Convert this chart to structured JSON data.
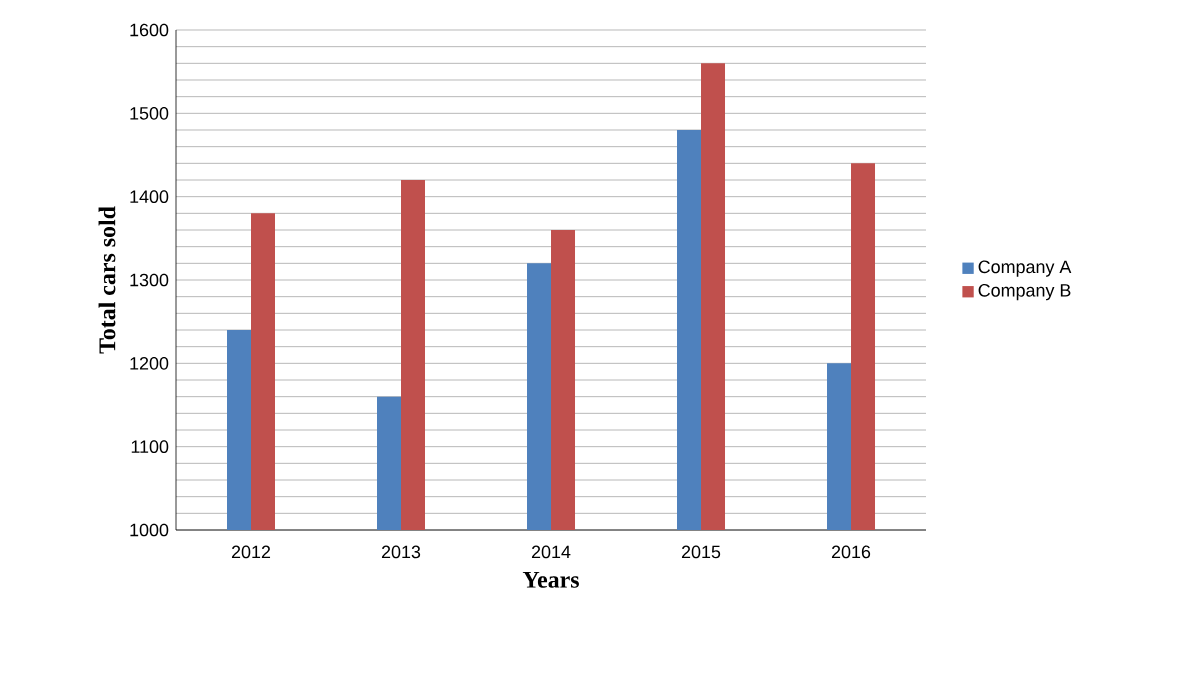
{
  "chart_data": {
    "type": "bar",
    "xlabel": "Years",
    "ylabel": "Total cars sold",
    "categories": [
      "2012",
      "2013",
      "2014",
      "2015",
      "2016"
    ],
    "series": [
      {
        "name": "Company A",
        "color": "#4f81bd",
        "values": [
          1240,
          1160,
          1320,
          1480,
          1200
        ]
      },
      {
        "name": "Company B",
        "color": "#c0504d",
        "values": [
          1380,
          1420,
          1360,
          1560,
          1440
        ]
      }
    ],
    "ylim": [
      1000,
      1600
    ],
    "yticks": [
      1000,
      {
        "value": 1020,
        "label": null
      },
      {
        "value": 1040,
        "label": null
      },
      {
        "value": 1060,
        "label": null
      },
      {
        "value": 1080,
        "label": null
      },
      1100,
      {
        "value": 1120,
        "label": null
      },
      {
        "value": 1140,
        "label": null
      },
      {
        "value": 1160,
        "label": null
      },
      {
        "value": 1180,
        "label": null
      },
      1200,
      {
        "value": 1220,
        "label": null
      },
      {
        "value": 1240,
        "label": null
      },
      {
        "value": 1260,
        "label": null
      },
      {
        "value": 1280,
        "label": null
      },
      1300,
      {
        "value": 1320,
        "label": null
      },
      {
        "value": 1340,
        "label": null
      },
      {
        "value": 1360,
        "label": null
      },
      {
        "value": 1380,
        "label": null
      },
      1400,
      {
        "value": 1420,
        "label": null
      },
      {
        "value": 1440,
        "label": null
      },
      {
        "value": 1460,
        "label": null
      },
      {
        "value": 1480,
        "label": null
      },
      1500,
      {
        "value": 1520,
        "label": null
      },
      {
        "value": 1540,
        "label": null
      },
      {
        "value": 1560,
        "label": null
      },
      {
        "value": 1580,
        "label": null
      },
      1600
    ],
    "grid": true,
    "legend": "right"
  }
}
